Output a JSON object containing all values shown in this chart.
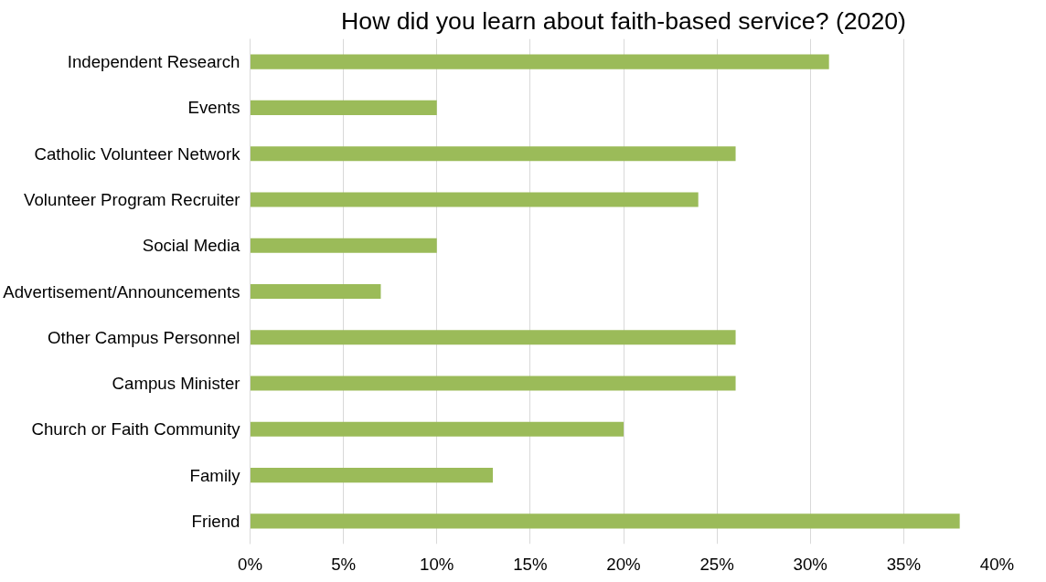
{
  "chart_data": {
    "type": "bar",
    "orientation": "horizontal",
    "title": "How did you learn about faith-based service? (2020)",
    "categories": [
      "Independent Research",
      "Events",
      "Catholic Volunteer Network",
      "Volunteer Program Recruiter",
      "Social Media",
      "Advertisement/Announcements",
      "Other Campus Personnel",
      "Campus Minister",
      "Church or Faith Community",
      "Family",
      "Friend"
    ],
    "values": [
      31,
      10,
      26,
      24,
      10,
      7,
      26,
      26,
      20,
      13,
      38
    ],
    "color": "#9bbb59",
    "xlim": [
      0,
      40
    ],
    "xticks": [
      {
        "value": 0,
        "label": "0%"
      },
      {
        "value": 5,
        "label": "5%"
      },
      {
        "value": 10,
        "label": "10%"
      },
      {
        "value": 15,
        "label": "15%"
      },
      {
        "value": 20,
        "label": "20%"
      },
      {
        "value": 25,
        "label": "25%"
      },
      {
        "value": 30,
        "label": "30%"
      },
      {
        "value": 35,
        "label": "35%"
      },
      {
        "value": 40,
        "label": "40%"
      }
    ],
    "grid": "x"
  }
}
